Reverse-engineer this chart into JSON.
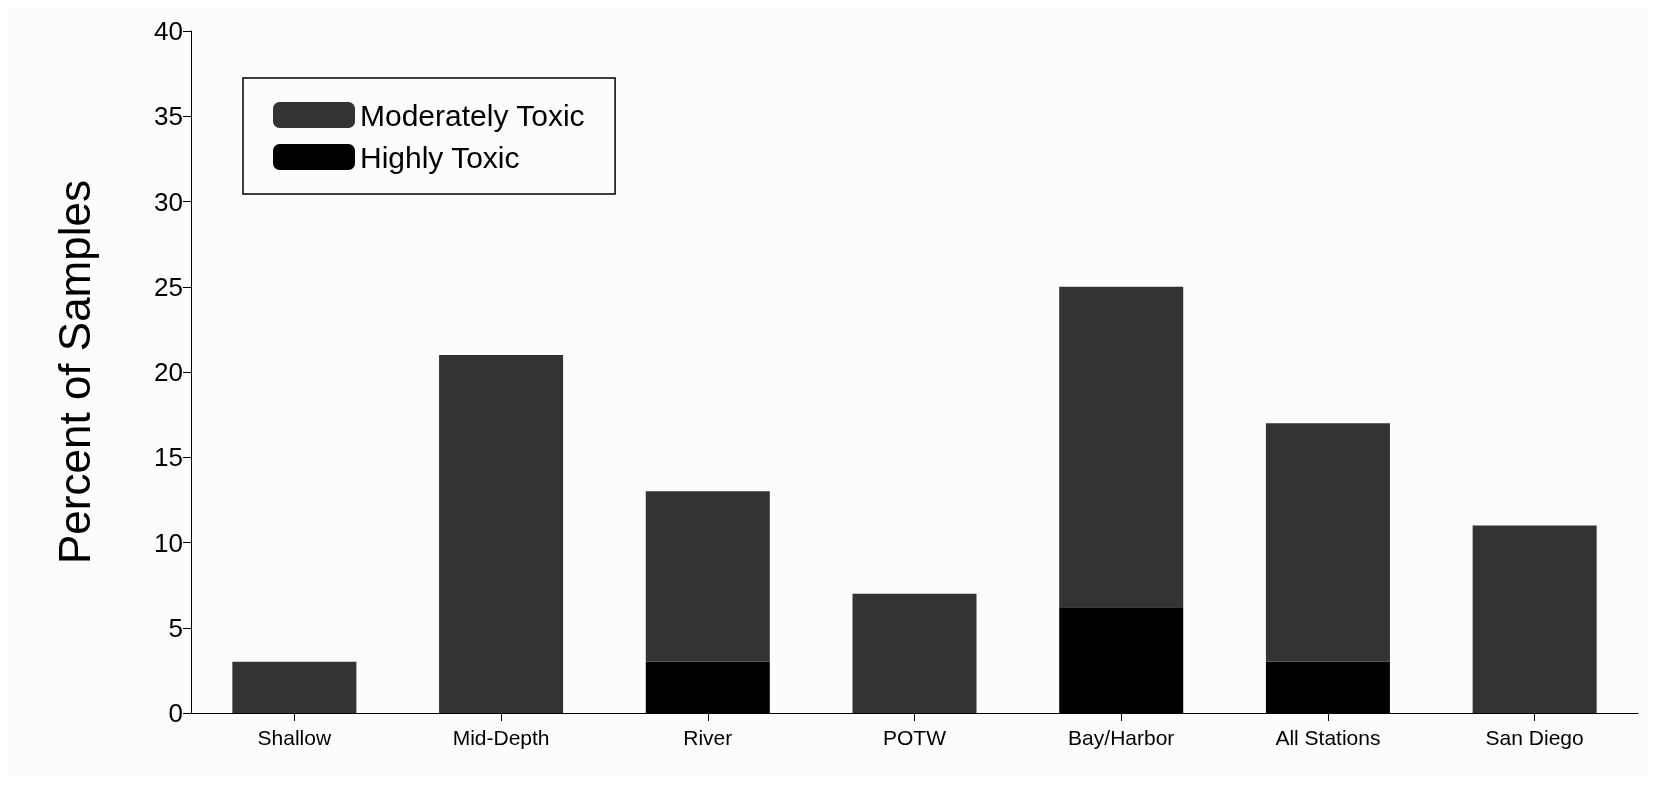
{
  "chart_data": {
    "type": "bar",
    "ylabel": "Percent of Samples",
    "categories": [
      "Shallow",
      "Mid-Depth",
      "River",
      "POTW",
      "Bay/Harbor",
      "All Stations",
      "San Diego"
    ],
    "stacked": true,
    "series": [
      {
        "name": "Highly Toxic",
        "color": "#000000",
        "values": [
          0,
          0,
          3,
          0,
          6.2,
          3,
          0
        ]
      },
      {
        "name": "Moderately Toxic",
        "color": "#333333",
        "values": [
          3,
          21,
          10,
          7,
          18.8,
          14,
          11
        ]
      }
    ],
    "ylim": [
      0,
      40
    ],
    "yticks": [
      0,
      5,
      10,
      15,
      20,
      25,
      30,
      35,
      40
    ],
    "grid": false,
    "legend": "top left"
  }
}
